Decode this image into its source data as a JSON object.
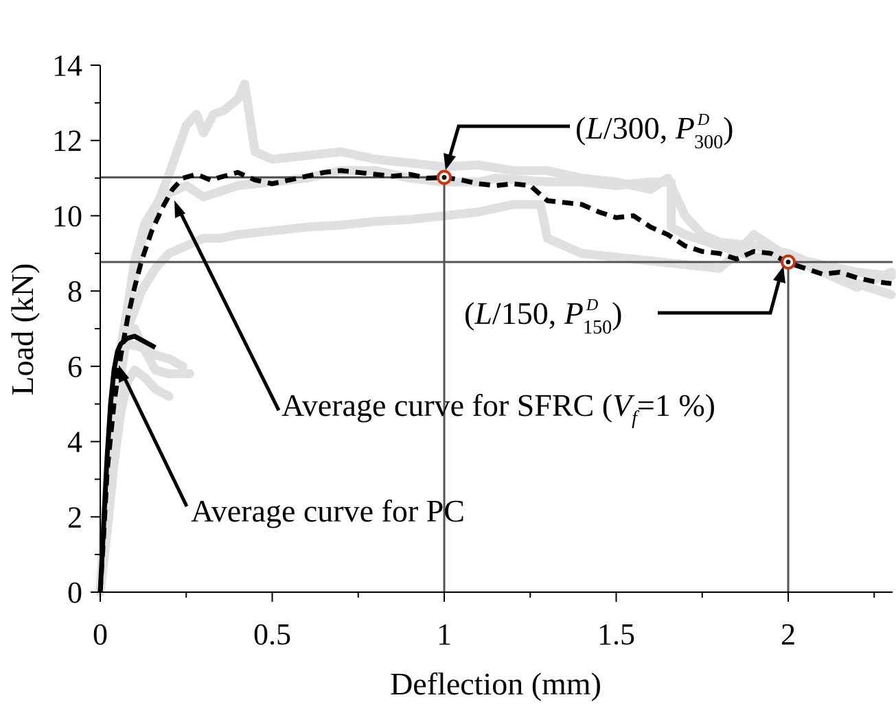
{
  "chart_data": {
    "type": "line",
    "xlabel": "Deflection (mm)",
    "ylabel": "Load (kN)",
    "xlim": [
      0,
      2.3
    ],
    "ylim": [
      0,
      14
    ],
    "x_ticks": [
      "0",
      "0.5",
      "1",
      "1.5",
      "2"
    ],
    "y_ticks": [
      "0",
      "2",
      "4",
      "6",
      "8",
      "10",
      "12",
      "14"
    ],
    "grid": false,
    "series": [
      {
        "name": "Average curve for SFRC (Vf=1 %)",
        "style": "dashed",
        "color": "#000000",
        "points": [
          [
            0,
            0
          ],
          [
            0.01,
            1.5
          ],
          [
            0.02,
            3.2
          ],
          [
            0.04,
            5.0
          ],
          [
            0.06,
            6.3
          ],
          [
            0.08,
            7.3
          ],
          [
            0.1,
            8.1
          ],
          [
            0.12,
            8.8
          ],
          [
            0.15,
            9.6
          ],
          [
            0.18,
            10.2
          ],
          [
            0.21,
            10.7
          ],
          [
            0.24,
            11.0
          ],
          [
            0.28,
            11.1
          ],
          [
            0.32,
            10.95
          ],
          [
            0.36,
            11.05
          ],
          [
            0.4,
            11.15
          ],
          [
            0.45,
            10.95
          ],
          [
            0.5,
            10.85
          ],
          [
            0.55,
            10.95
          ],
          [
            0.6,
            11.05
          ],
          [
            0.65,
            11.15
          ],
          [
            0.7,
            11.2
          ],
          [
            0.75,
            11.15
          ],
          [
            0.8,
            11.1
          ],
          [
            0.85,
            11.05
          ],
          [
            0.9,
            11.1
          ],
          [
            0.95,
            11.0
          ],
          [
            1.0,
            11.02
          ],
          [
            1.05,
            10.95
          ],
          [
            1.1,
            10.85
          ],
          [
            1.15,
            10.8
          ],
          [
            1.2,
            10.85
          ],
          [
            1.25,
            10.8
          ],
          [
            1.3,
            10.4
          ],
          [
            1.35,
            10.35
          ],
          [
            1.4,
            10.3
          ],
          [
            1.45,
            10.1
          ],
          [
            1.5,
            9.95
          ],
          [
            1.55,
            10.0
          ],
          [
            1.6,
            9.7
          ],
          [
            1.65,
            9.5
          ],
          [
            1.7,
            9.2
          ],
          [
            1.75,
            9.05
          ],
          [
            1.8,
            9.0
          ],
          [
            1.85,
            8.85
          ],
          [
            1.9,
            9.05
          ],
          [
            1.95,
            9.0
          ],
          [
            2.0,
            8.75
          ],
          [
            2.05,
            8.6
          ],
          [
            2.1,
            8.45
          ],
          [
            2.15,
            8.5
          ],
          [
            2.2,
            8.35
          ],
          [
            2.25,
            8.25
          ],
          [
            2.3,
            8.2
          ]
        ]
      },
      {
        "name": "Average curve for PC",
        "style": "solid",
        "color": "#000000",
        "points": [
          [
            0,
            0
          ],
          [
            0.01,
            1.8
          ],
          [
            0.02,
            3.6
          ],
          [
            0.03,
            5.0
          ],
          [
            0.04,
            5.9
          ],
          [
            0.05,
            6.4
          ],
          [
            0.06,
            6.6
          ],
          [
            0.08,
            6.75
          ],
          [
            0.1,
            6.8
          ],
          [
            0.12,
            6.7
          ],
          [
            0.14,
            6.6
          ],
          [
            0.16,
            6.5
          ]
        ]
      },
      {
        "name": "",
        "style": "specimen",
        "color": "#e0e0e0",
        "points": [
          [
            0,
            0
          ],
          [
            0.02,
            3.0
          ],
          [
            0.05,
            6.0
          ],
          [
            0.08,
            7.6
          ],
          [
            0.1,
            8.8
          ],
          [
            0.13,
            9.8
          ],
          [
            0.17,
            10.4
          ],
          [
            0.2,
            11.1
          ],
          [
            0.25,
            12.4
          ],
          [
            0.28,
            12.7
          ],
          [
            0.3,
            12.2
          ],
          [
            0.33,
            12.7
          ],
          [
            0.36,
            12.8
          ],
          [
            0.4,
            13.1
          ],
          [
            0.42,
            13.5
          ],
          [
            0.45,
            11.7
          ],
          [
            0.5,
            11.5
          ],
          [
            0.6,
            11.6
          ],
          [
            0.7,
            11.7
          ],
          [
            0.8,
            11.5
          ],
          [
            0.9,
            11.4
          ],
          [
            1.0,
            11.3
          ],
          [
            1.1,
            11.35
          ],
          [
            1.2,
            11.2
          ],
          [
            1.3,
            11.2
          ],
          [
            1.4,
            11.0
          ],
          [
            1.5,
            10.9
          ],
          [
            1.6,
            10.7
          ],
          [
            1.65,
            11.0
          ],
          [
            1.7,
            10.0
          ],
          [
            1.75,
            9.5
          ],
          [
            1.8,
            9.3
          ],
          [
            1.9,
            9.2
          ],
          [
            2.0,
            9.0
          ],
          [
            2.1,
            8.6
          ],
          [
            2.2,
            8.2
          ],
          [
            2.3,
            7.9
          ]
        ]
      },
      {
        "name": "",
        "style": "specimen",
        "color": "#e0e0e0",
        "points": [
          [
            0,
            0
          ],
          [
            0.02,
            2.5
          ],
          [
            0.05,
            5.5
          ],
          [
            0.08,
            7.5
          ],
          [
            0.12,
            9.3
          ],
          [
            0.16,
            10.2
          ],
          [
            0.2,
            10.6
          ],
          [
            0.25,
            10.8
          ],
          [
            0.3,
            10.5
          ],
          [
            0.35,
            10.65
          ],
          [
            0.4,
            10.8
          ],
          [
            0.5,
            10.9
          ],
          [
            0.6,
            11.0
          ],
          [
            0.7,
            11.2
          ],
          [
            0.8,
            11.2
          ],
          [
            0.9,
            11.0
          ],
          [
            1.0,
            10.9
          ],
          [
            1.1,
            10.9
          ],
          [
            1.15,
            11.0
          ],
          [
            1.3,
            10.9
          ],
          [
            1.4,
            10.9
          ],
          [
            1.5,
            10.8
          ],
          [
            1.6,
            10.9
          ],
          [
            1.66,
            10.9
          ],
          [
            1.66,
            9.7
          ],
          [
            1.7,
            9.5
          ],
          [
            1.8,
            9.2
          ],
          [
            1.9,
            8.9
          ],
          [
            2.0,
            8.9
          ],
          [
            2.1,
            8.7
          ],
          [
            2.2,
            8.5
          ],
          [
            2.3,
            8.4
          ]
        ]
      },
      {
        "name": "",
        "style": "specimen",
        "color": "#e0e0e0",
        "points": [
          [
            0,
            0
          ],
          [
            0.02,
            3.0
          ],
          [
            0.05,
            5.5
          ],
          [
            0.08,
            7.0
          ],
          [
            0.12,
            8.0
          ],
          [
            0.16,
            8.6
          ],
          [
            0.2,
            9.0
          ],
          [
            0.25,
            9.2
          ],
          [
            0.3,
            9.4
          ],
          [
            0.35,
            9.4
          ],
          [
            0.4,
            9.5
          ],
          [
            0.5,
            9.6
          ],
          [
            0.6,
            9.7
          ],
          [
            0.7,
            9.75
          ],
          [
            0.8,
            9.85
          ],
          [
            0.9,
            9.9
          ],
          [
            1.0,
            10.0
          ],
          [
            1.1,
            10.1
          ],
          [
            1.2,
            10.3
          ],
          [
            1.25,
            10.3
          ],
          [
            1.28,
            10.3
          ],
          [
            1.3,
            9.4
          ],
          [
            1.35,
            9.2
          ],
          [
            1.4,
            9.0
          ],
          [
            1.5,
            8.9
          ],
          [
            1.6,
            8.8
          ],
          [
            1.7,
            8.7
          ],
          [
            1.8,
            8.6
          ],
          [
            1.85,
            9.0
          ],
          [
            1.9,
            9.5
          ],
          [
            2.0,
            8.9
          ],
          [
            2.1,
            8.5
          ],
          [
            2.2,
            8.1
          ],
          [
            2.3,
            8.5
          ]
        ]
      },
      {
        "name": "",
        "style": "specimen",
        "color": "#e0e0e0",
        "points": [
          [
            0,
            0
          ],
          [
            0.02,
            2.6
          ],
          [
            0.04,
            4.8
          ],
          [
            0.06,
            6.3
          ],
          [
            0.08,
            6.6
          ],
          [
            0.12,
            6.5
          ],
          [
            0.16,
            6.3
          ],
          [
            0.2,
            6.2
          ],
          [
            0.24,
            6.0
          ]
        ]
      },
      {
        "name": "",
        "style": "specimen",
        "color": "#e0e0e0",
        "points": [
          [
            0,
            0
          ],
          [
            0.02,
            2.2
          ],
          [
            0.04,
            4.3
          ],
          [
            0.06,
            5.8
          ],
          [
            0.08,
            6.9
          ],
          [
            0.1,
            7.0
          ],
          [
            0.12,
            6.6
          ],
          [
            0.16,
            5.9
          ],
          [
            0.2,
            5.8
          ],
          [
            0.26,
            5.8
          ]
        ]
      },
      {
        "name": "",
        "style": "specimen",
        "color": "#e0e0e0",
        "points": [
          [
            0,
            0
          ],
          [
            0.02,
            1.6
          ],
          [
            0.04,
            3.4
          ],
          [
            0.06,
            4.8
          ],
          [
            0.08,
            5.6
          ],
          [
            0.1,
            5.9
          ],
          [
            0.13,
            5.7
          ],
          [
            0.16,
            5.4
          ],
          [
            0.2,
            5.2
          ]
        ]
      }
    ],
    "reference_lines": {
      "horizontal": [
        11.02,
        8.77
      ],
      "vertical": [
        1.0,
        2.0
      ],
      "color": "#555555"
    },
    "marked_points": [
      {
        "x": 1.0,
        "y": 11.02,
        "color": "#cc3311"
      },
      {
        "x": 2.0,
        "y": 8.77,
        "color": "#cc3311"
      }
    ],
    "annotations": [
      {
        "id": "l300",
        "prefix": "(",
        "italic_L": "L",
        "mid": "/300, ",
        "italic_P": "P",
        "sup": "D",
        "sub": "300",
        "suffix": ")"
      },
      {
        "id": "l150",
        "prefix": "(",
        "italic_L": "L",
        "mid": "/150, ",
        "italic_P": "P",
        "sup": "D",
        "sub": "150",
        "suffix": ")"
      },
      {
        "id": "sfrc",
        "text_before": "Average curve for SFRC (",
        "italic_V": "V",
        "sub": "f",
        "text_after": "=1 %)"
      },
      {
        "id": "pc",
        "text": "Average curve for PC"
      }
    ]
  }
}
